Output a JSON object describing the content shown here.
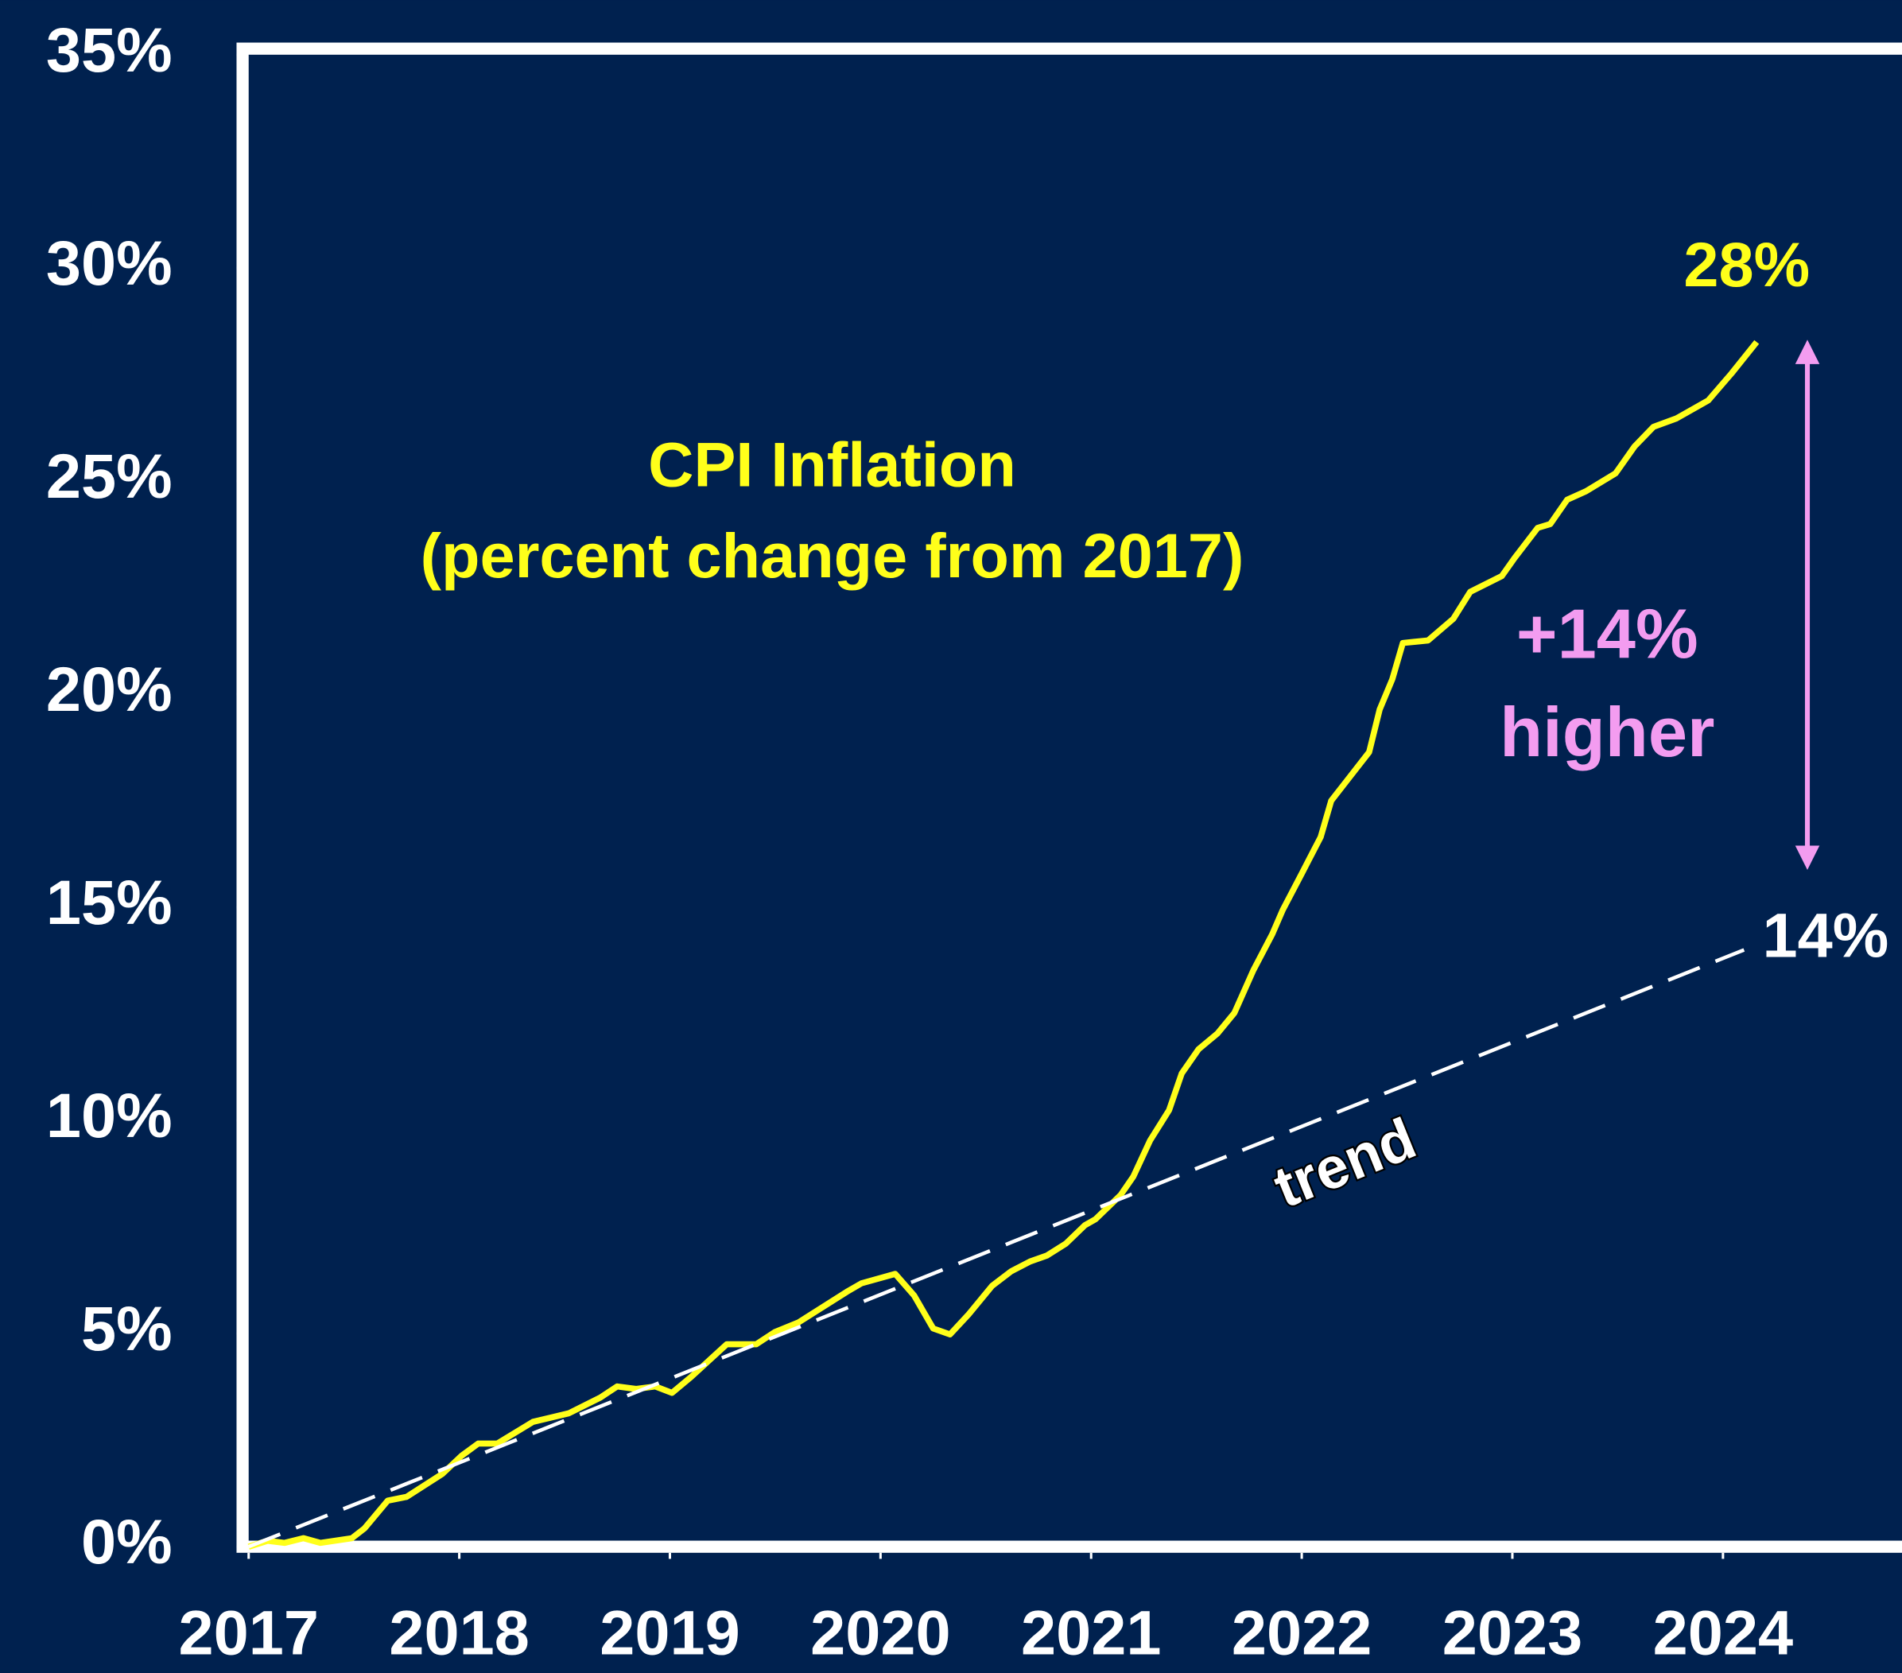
{
  "chart_data": {
    "type": "line",
    "title": "CPI Inflation",
    "subtitle": "(percent change from 2017)",
    "annotations": [
      "28%",
      "14%",
      "+14%",
      "higher",
      "trend"
    ],
    "xlim": [
      2017,
      2024.85
    ],
    "xticks": [
      2017,
      2018,
      2019,
      2020,
      2021,
      2022,
      2023,
      2024
    ],
    "ylim": [
      0,
      35
    ],
    "yticks": [
      {
        "value": 0,
        "label": "0%"
      },
      {
        "value": 5,
        "label": "5%"
      },
      {
        "value": 10,
        "label": "10%"
      },
      {
        "value": 15,
        "label": "15%"
      },
      {
        "value": 20,
        "label": "20%"
      },
      {
        "value": 25,
        "label": "25%"
      },
      {
        "value": 30,
        "label": "30%"
      },
      {
        "value": 35,
        "label": "35%"
      }
    ],
    "series": [
      {
        "color": "#ffff1a",
        "x": [
          2017.0,
          2017.09,
          2017.17,
          2017.26,
          2017.34,
          2017.49,
          2017.55,
          2017.66,
          2017.75,
          2017.92,
          2018.01,
          2018.09,
          2018.18,
          2018.35,
          2018.52,
          2018.67,
          2018.75,
          2018.84,
          2018.93,
          2019.01,
          2019.1,
          2019.27,
          2019.41,
          2019.5,
          2019.61,
          2019.84,
          2019.91,
          2020.07,
          2020.16,
          2020.25,
          2020.33,
          2020.42,
          2020.53,
          2020.62,
          2020.71,
          2020.79,
          2020.88,
          2020.97,
          2021.02,
          2021.14,
          2021.2,
          2021.28,
          2021.37,
          2021.43,
          2021.51,
          2021.6,
          2021.68,
          2021.77,
          2021.86,
          2021.91,
          2022.0,
          2022.09,
          2022.14,
          2022.23,
          2022.32,
          2022.37,
          2022.43,
          2022.48,
          2022.6,
          2022.72,
          2022.8,
          2022.95,
          2023.01,
          2023.12,
          2023.18,
          2023.26,
          2023.35,
          2023.49,
          2023.58,
          2023.67,
          2023.78,
          2023.93,
          2024.04,
          2024.16
        ],
        "values": [
          0,
          0.14,
          0.09,
          0.2,
          0.09,
          0.2,
          0.43,
          1.08,
          1.17,
          1.71,
          2.13,
          2.42,
          2.42,
          2.93,
          3.13,
          3.5,
          3.76,
          3.7,
          3.76,
          3.61,
          3.98,
          4.75,
          4.75,
          5.04,
          5.26,
          5.98,
          6.18,
          6.4,
          5.89,
          5.12,
          4.98,
          5.46,
          6.12,
          6.46,
          6.69,
          6.83,
          7.11,
          7.54,
          7.68,
          8.25,
          8.68,
          9.53,
          10.24,
          11.1,
          11.67,
          12.04,
          12.52,
          13.52,
          14.37,
          14.94,
          15.79,
          16.65,
          17.5,
          18.07,
          18.64,
          19.64,
          20.35,
          21.2,
          21.26,
          21.77,
          22.4,
          22.77,
          23.19,
          23.9,
          23.99,
          24.56,
          24.76,
          25.18,
          25.81,
          26.27,
          26.47,
          26.89,
          27.52,
          28.26
        ]
      },
      {
        "color": "#ffffff",
        "dashed": true,
        "x": [
          2017.0,
          2024.1
        ],
        "values": [
          0,
          14
        ]
      }
    ]
  }
}
